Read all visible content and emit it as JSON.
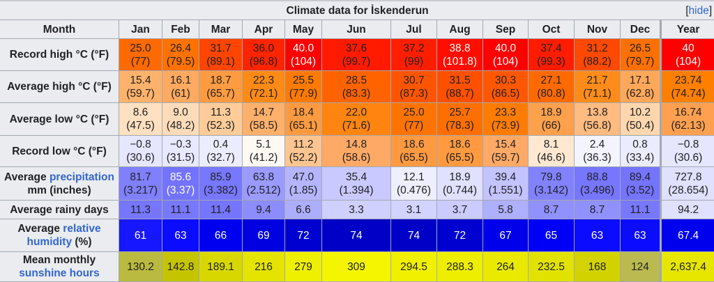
{
  "title": "Climate data for İskenderun",
  "hide_label": "hide",
  "header": {
    "month": "Month",
    "columns": [
      "Jan",
      "Feb",
      "Mar",
      "Apr",
      "May",
      "Jun",
      "Jul",
      "Aug",
      "Sep",
      "Oct",
      "Nov",
      "Dec",
      "Year"
    ]
  },
  "rows": [
    {
      "label_parts": [
        {
          "text": "Record high °C (°F)",
          "link": false
        }
      ],
      "values": [
        "25.0",
        "26.4",
        "31.7",
        "36.0",
        "40.0",
        "37.6",
        "37.2",
        "38.8",
        "40.0",
        "37.4",
        "31.2",
        "26.5",
        "40"
      ],
      "sub": [
        "(77)",
        "(79.5)",
        "(89.1)",
        "(96.8)",
        "(104)",
        "(99.7)",
        "(99)",
        "(101.8)",
        "(104)",
        "(99.3)",
        "(88.2)",
        "(79.7)",
        "(104)"
      ],
      "colors": [
        "#ff6a00",
        "#ff7200",
        "#ff4500",
        "#ff2400",
        "#ff0000",
        "#ff1a00",
        "#ff1e00",
        "#ff0e00",
        "#ff0000",
        "#ff1c00",
        "#ff4800",
        "#ff7000",
        "#ff0000"
      ],
      "white": [
        false,
        false,
        false,
        false,
        true,
        false,
        false,
        true,
        true,
        false,
        false,
        false,
        true
      ]
    },
    {
      "label_parts": [
        {
          "text": "Average high °C (°F)",
          "link": false
        }
      ],
      "values": [
        "15.4",
        "16.1",
        "18.7",
        "22.3",
        "25.5",
        "28.5",
        "30.7",
        "31.5",
        "30.3",
        "27.1",
        "21.7",
        "17.1",
        "23.74"
      ],
      "sub": [
        "(59.7)",
        "(61)",
        "(65.7)",
        "(72.1)",
        "(77.9)",
        "(83.3)",
        "(87.3)",
        "(88.7)",
        "(86.5)",
        "(80.8)",
        "(71.1)",
        "(62.8)",
        "(74.74)"
      ],
      "colors": [
        "#ffb26b",
        "#ffaa60",
        "#ff9b40",
        "#ff8a15",
        "#ff7a00",
        "#ff6300",
        "#ff5500",
        "#ff5000",
        "#ff5700",
        "#ff6a00",
        "#ff8c1a",
        "#ffa85a",
        "#ff7f00"
      ]
    },
    {
      "label_parts": [
        {
          "text": "Average low °C (°F)",
          "link": false
        }
      ],
      "values": [
        "8.6",
        "9.0",
        "11.3",
        "14.7",
        "18.4",
        "22.0",
        "25.0",
        "25.7",
        "23.3",
        "18.9",
        "13.8",
        "10.2",
        "16.74"
      ],
      "sub": [
        "(47.5)",
        "(48.2)",
        "(52.3)",
        "(58.5)",
        "(65.1)",
        "(71.6)",
        "(77)",
        "(78.3)",
        "(73.9)",
        "(66)",
        "(56.8)",
        "(50.4)",
        "(62.13)"
      ],
      "colors": [
        "#ffe0c0",
        "#ffdcb9",
        "#ffcc99",
        "#ffb06b",
        "#ff9a40",
        "#ff8410",
        "#ff7400",
        "#ff6f00",
        "#ff7c00",
        "#ffa04d",
        "#ffbb80",
        "#ffd6ad",
        "#ffa050"
      ]
    },
    {
      "label_parts": [
        {
          "text": "Record low °C (°F)",
          "link": false
        }
      ],
      "values": [
        "−0.8",
        "−0.3",
        "0.4",
        "5.1",
        "11.2",
        "14.8",
        "18.6",
        "18.6",
        "15.4",
        "8.1",
        "2.4",
        "0.8",
        "−0.8"
      ],
      "sub": [
        "(30.6)",
        "(31.5)",
        "(32.7)",
        "(41.2)",
        "(52.2)",
        "(58.6)",
        "(65.5)",
        "(65.5)",
        "(59.7)",
        "(46.6)",
        "(36.3)",
        "(33.4)",
        "(30.6)"
      ],
      "colors": [
        "#e6e6ff",
        "#e8e8ff",
        "#ececff",
        "#fff9f4",
        "#ffc590",
        "#ffa966",
        "#ff9a40",
        "#ff9a40",
        "#ffa966",
        "#ffe8d2",
        "#f4f4ff",
        "#ececff",
        "#e6e6ff"
      ]
    },
    {
      "label_parts": [
        {
          "text": "Average ",
          "link": false
        },
        {
          "text": "precipitation",
          "link": true
        },
        {
          "text": " mm (inches)",
          "link": false
        }
      ],
      "values": [
        "81.7",
        "85.6",
        "85.9",
        "63.8",
        "47.0",
        "35.4",
        "12.1",
        "18.9",
        "39.4",
        "79.8",
        "88.8",
        "89.4",
        "727.8"
      ],
      "sub": [
        "(3.217)",
        "(3.37)",
        "(3.382)",
        "(2.512)",
        "(1.85)",
        "(1.394)",
        "(0.476)",
        "(0.744)",
        "(1.551)",
        "(3.142)",
        "(3.496)",
        "(3.52)",
        "(28.654)"
      ],
      "colors": [
        "#8080ff",
        "#7373ff",
        "#7777ff",
        "#9a9aff",
        "#b5b5ff",
        "#c9c9ff",
        "#eeeeff",
        "#e0e0ff",
        "#c3c3ff",
        "#8282ff",
        "#7676ff",
        "#7474ff",
        "#e0e0ff"
      ],
      "white": [
        false,
        true,
        false,
        false,
        false,
        false,
        false,
        false,
        false,
        false,
        false,
        false,
        false
      ]
    },
    {
      "label_parts": [
        {
          "text": "Average rainy days",
          "link": false
        }
      ],
      "values": [
        "11.3",
        "11.1",
        "11.4",
        "9.4",
        "6.6",
        "3.3",
        "3.1",
        "3.7",
        "5.8",
        "8.7",
        "8.7",
        "11.1",
        "94.2"
      ],
      "colors": [
        "#7676ff",
        "#7878ff",
        "#7575ff",
        "#8c8cff",
        "#adadff",
        "#d0d0ff",
        "#d3d3ff",
        "#cbcbff",
        "#afafff",
        "#9090ff",
        "#9090ff",
        "#7878ff",
        "#e0e0ff"
      ]
    },
    {
      "label_parts": [
        {
          "text": "Average ",
          "link": false
        },
        {
          "text": "relative humidity",
          "link": true
        },
        {
          "text": " (%)",
          "link": false
        }
      ],
      "values": [
        "61",
        "63",
        "66",
        "69",
        "72",
        "74",
        "74",
        "72",
        "67",
        "65",
        "63",
        "63",
        "67.4"
      ],
      "colors": [
        "#1616ff",
        "#0b0bff",
        "#0000f0",
        "#0000e0",
        "#0000d0",
        "#0000c6",
        "#0000c6",
        "#0000d0",
        "#0000ea",
        "#0000f6",
        "#0b0bff",
        "#0b0bff",
        "#0000ec"
      ],
      "white": [
        true,
        true,
        true,
        true,
        true,
        true,
        true,
        true,
        true,
        true,
        true,
        true,
        true
      ]
    },
    {
      "label_parts": [
        {
          "text": "Mean monthly ",
          "link": false
        },
        {
          "text": "sunshine hours",
          "link": true
        }
      ],
      "values": [
        "130.2",
        "142.8",
        "189.1",
        "216",
        "279",
        "309",
        "294.5",
        "288.3",
        "264",
        "232.5",
        "168",
        "124",
        "2,637.4"
      ],
      "colors": [
        "#baba40",
        "#c4c400",
        "#d8d800",
        "#e4e400",
        "#efef00",
        "#f5f500",
        "#f0f000",
        "#eeee00",
        "#eaea00",
        "#e2e200",
        "#d2d200",
        "#baba50",
        "#e6e600"
      ]
    }
  ]
}
